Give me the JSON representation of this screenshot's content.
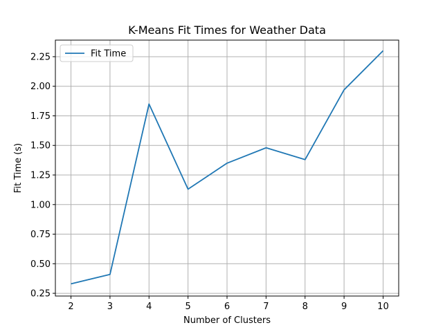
{
  "chart_data": {
    "type": "line",
    "title": "K-Means Fit Times for Weather Data",
    "xlabel": "Number of Clusters",
    "ylabel": "Fit Time (s)",
    "x": [
      2,
      3,
      4,
      5,
      6,
      7,
      8,
      9,
      10
    ],
    "xlim": [
      1.6,
      10.4
    ],
    "ylim": [
      0.227,
      2.39
    ],
    "xticks": [
      "2",
      "3",
      "4",
      "5",
      "6",
      "7",
      "8",
      "9",
      "10"
    ],
    "yticks": [
      "0.25",
      "0.50",
      "0.75",
      "1.00",
      "1.25",
      "1.50",
      "1.75",
      "2.00",
      "2.25"
    ],
    "grid": true,
    "legend_position": "top-left",
    "series": [
      {
        "name": "Fit Time",
        "color": "#1f77b4",
        "values": [
          0.33,
          0.41,
          1.85,
          1.13,
          1.35,
          1.48,
          1.38,
          1.97,
          2.3
        ]
      }
    ]
  }
}
